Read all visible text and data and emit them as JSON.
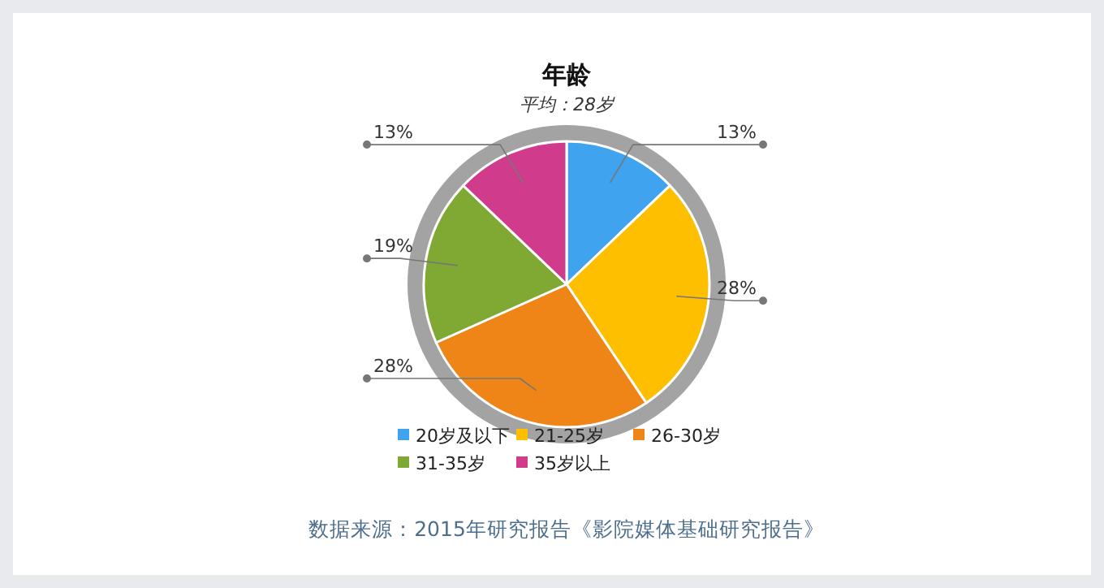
{
  "chart_data": {
    "type": "pie",
    "title": "年龄",
    "subtitle": "平均：28岁",
    "categories": [
      "20岁及以下",
      "21-25岁",
      "26-30岁",
      "31-35岁",
      "35岁以上"
    ],
    "values": [
      13,
      28,
      28,
      19,
      13
    ],
    "colors": [
      "#3fa3ef",
      "#fdbf00",
      "#ee8516",
      "#80a934",
      "#d03b8c"
    ],
    "value_labels": [
      "13%",
      "28%",
      "28%",
      "19%",
      "13%"
    ],
    "legend": "bottom",
    "annotations": [
      "数据来源：2015年研究报告《影院媒体基础研究报告》"
    ]
  }
}
